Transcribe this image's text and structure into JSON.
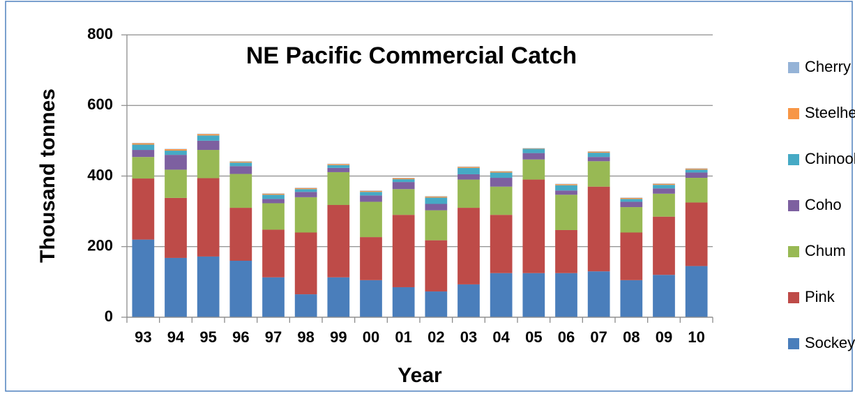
{
  "chart_data": {
    "type": "stacked_bar",
    "title": "NE Pacific Commercial Catch",
    "x_label": "Year",
    "y_label": "Thousand  tonnes",
    "categories": [
      "93",
      "94",
      "95",
      "96",
      "97",
      "98",
      "99",
      "00",
      "01",
      "02",
      "03",
      "04",
      "05",
      "06",
      "07",
      "08",
      "09",
      "10"
    ],
    "series": [
      {
        "name": "Sockeye",
        "color": "#4a7ebb",
        "values": [
          220,
          168,
          172,
          160,
          113,
          65,
          113,
          105,
          85,
          73,
          93,
          125,
          125,
          125,
          130,
          105,
          120,
          145
        ]
      },
      {
        "name": "Pink",
        "color": "#be4b48",
        "values": [
          173,
          170,
          222,
          150,
          135,
          175,
          205,
          122,
          205,
          145,
          217,
          165,
          265,
          122,
          240,
          135,
          165,
          180
        ]
      },
      {
        "name": "Chum",
        "color": "#98b954",
        "values": [
          61,
          80,
          80,
          96,
          75,
          100,
          93,
          100,
          73,
          85,
          80,
          80,
          57,
          100,
          72,
          72,
          65,
          70
        ]
      },
      {
        "name": "Coho",
        "color": "#7d60a0",
        "values": [
          20,
          42,
          26,
          22,
          12,
          15,
          12,
          18,
          20,
          18,
          15,
          25,
          18,
          12,
          12,
          15,
          15,
          15
        ]
      },
      {
        "name": "Chinook",
        "color": "#46aac5",
        "values": [
          15,
          12,
          15,
          10,
          12,
          8,
          8,
          10,
          8,
          18,
          18,
          15,
          12,
          15,
          12,
          8,
          10,
          8
        ]
      },
      {
        "name": "Steelhead",
        "color": "#f79646",
        "values": [
          4,
          4,
          4,
          3,
          3,
          3,
          3,
          3,
          3,
          3,
          3,
          3,
          1,
          3,
          3,
          3,
          3,
          3
        ]
      },
      {
        "name": "Cherry",
        "color": "#95b3d7",
        "values": [
          1,
          1,
          1,
          1,
          1,
          1,
          1,
          1,
          1,
          1,
          1,
          1,
          1,
          1,
          1,
          1,
          1,
          1
        ]
      }
    ],
    "ylim": [
      0,
      800
    ],
    "yticks": [
      0,
      200,
      400,
      600,
      800
    ],
    "grid": true,
    "legend": "right"
  }
}
